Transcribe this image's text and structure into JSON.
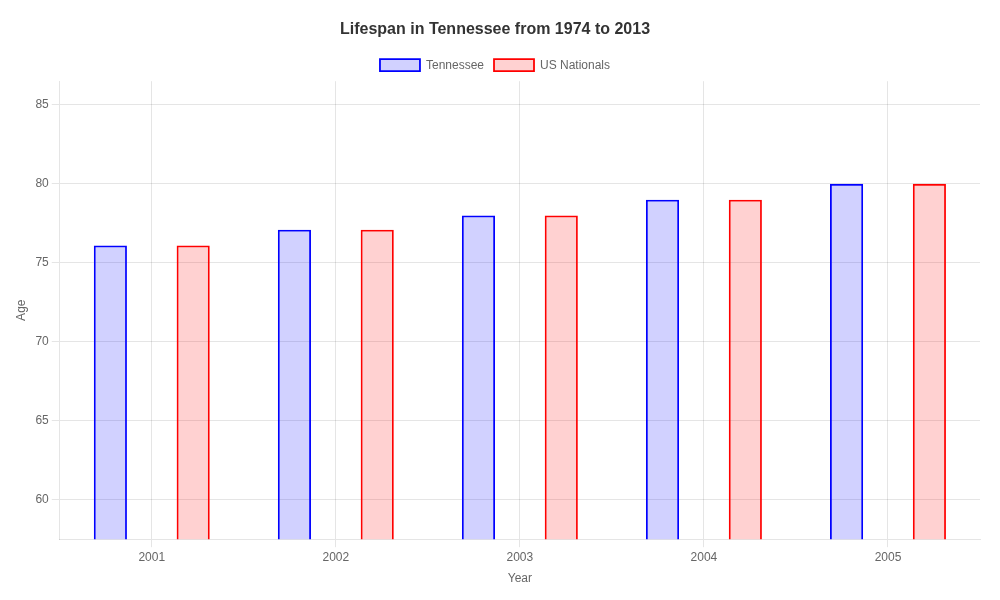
{
  "chart_data": {
    "type": "bar",
    "title": "Lifespan in Tennessee from 1974 to 2013",
    "xlabel": "Year",
    "ylabel": "Age",
    "categories": [
      "2001",
      "2002",
      "2003",
      "2004",
      "2005"
    ],
    "series": [
      {
        "name": "Tennessee",
        "color": "#0000ff",
        "values": [
          76.1,
          77.1,
          78.0,
          79.0,
          80.0
        ]
      },
      {
        "name": "US Nationals",
        "color": "#ff0000",
        "values": [
          76.1,
          77.1,
          78.0,
          79.0,
          80.0
        ]
      }
    ],
    "ylim": [
      57.5,
      86.5
    ],
    "yticks": [
      60,
      65,
      70,
      75,
      80,
      85
    ],
    "grid": true,
    "legend": "top"
  }
}
